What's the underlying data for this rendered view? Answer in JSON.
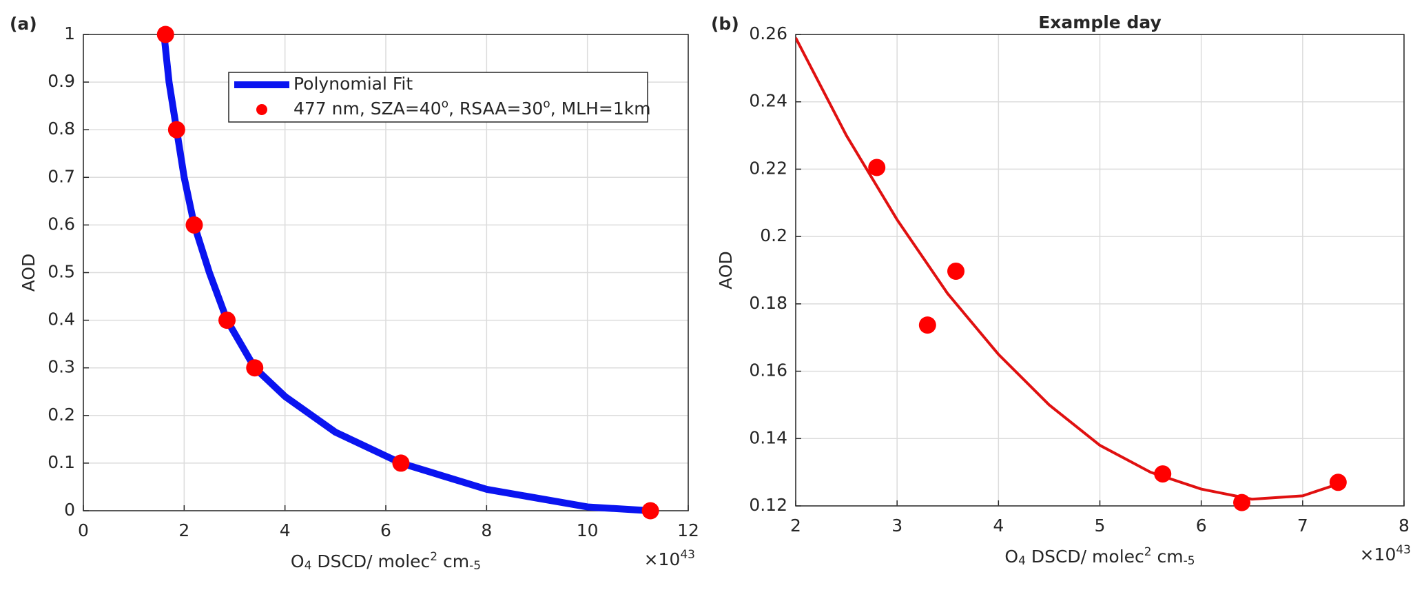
{
  "chart_data": [
    {
      "type": "line",
      "panel_label": "(a)",
      "ylabel": "AOD",
      "xlabel": [
        "O",
        "4",
        " DSCD/ molec",
        "2",
        " cm",
        "-5"
      ],
      "x_scale_label": [
        "×10",
        "43"
      ],
      "xlim": [
        0,
        12
      ],
      "xticks": [
        0,
        2,
        4,
        6,
        8,
        10,
        12
      ],
      "ylim": [
        0,
        1
      ],
      "yticks": [
        0,
        0.1,
        0.2,
        0.3,
        0.4,
        0.5,
        0.6,
        0.7,
        0.8,
        0.9,
        1
      ],
      "grid": true,
      "legend": "upper right",
      "series": [
        {
          "name": [
            "Polynomial Fit"
          ],
          "mode": "line",
          "color": "#0a14f0",
          "x": [
            1.6,
            1.7,
            1.85,
            2.0,
            2.2,
            2.5,
            2.85,
            3.4,
            4,
            5,
            6.3,
            8,
            10,
            11.25
          ],
          "values": [
            1.0,
            0.9,
            0.8,
            0.7,
            0.6,
            0.5,
            0.4,
            0.3,
            0.24,
            0.165,
            0.1,
            0.045,
            0.008,
            0
          ]
        },
        {
          "name": [
            "477 nm, SZA=40",
            "o",
            ", RSAA=30",
            "o",
            ", MLH=1km"
          ],
          "mode": "markers",
          "color": "#ff0000",
          "x": [
            1.63,
            1.85,
            2.2,
            2.85,
            3.4,
            6.3,
            11.25
          ],
          "values": [
            1,
            0.8,
            0.6,
            0.4,
            0.3,
            0.1,
            0
          ]
        }
      ]
    },
    {
      "type": "line",
      "panel_label": "(b)",
      "title": "Example day",
      "ylabel": "AOD",
      "xlabel": [
        "O",
        "4",
        " DSCD/ molec",
        "2",
        " cm",
        "-5"
      ],
      "x_scale_label": [
        "×10",
        "43"
      ],
      "xlim": [
        2,
        8
      ],
      "xticks": [
        2,
        3,
        4,
        5,
        6,
        7,
        8
      ],
      "ylim": [
        0.12,
        0.26
      ],
      "yticks": [
        0.12,
        0.14,
        0.16,
        0.18,
        0.2,
        0.22,
        0.24,
        0.26
      ],
      "grid": true,
      "series": [
        {
          "mode": "line",
          "color": "#e01010",
          "x": [
            2,
            2.5,
            3,
            3.5,
            4,
            4.5,
            5,
            5.5,
            6,
            6.5,
            7,
            7.35
          ],
          "values": [
            0.259,
            0.23,
            0.205,
            0.183,
            0.165,
            0.15,
            0.138,
            0.13,
            0.125,
            0.122,
            0.123,
            0.1265
          ]
        },
        {
          "mode": "markers",
          "color": "#ff0000",
          "x": [
            2.8,
            3.3,
            3.58,
            5.62,
            6.4,
            7.35
          ],
          "values": [
            0.2205,
            0.1737,
            0.1897,
            0.1295,
            0.121,
            0.127
          ]
        }
      ]
    }
  ]
}
